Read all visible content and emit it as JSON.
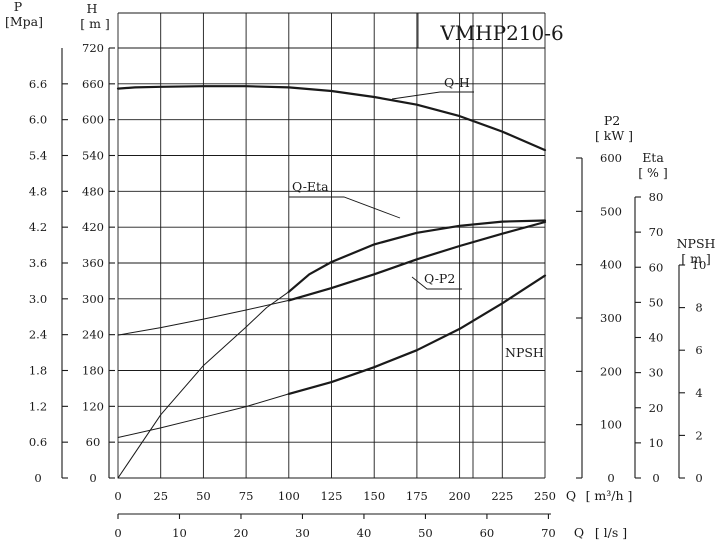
{
  "chart_data": {
    "type": "line",
    "title": "VMHP210-6",
    "grid": true,
    "axes": {
      "H": {
        "label": "H",
        "unit": "[ m ]",
        "ticks": [
          0,
          60,
          120,
          180,
          240,
          300,
          360,
          420,
          480,
          540,
          600,
          660,
          720
        ],
        "range": [
          0,
          720
        ]
      },
      "P": {
        "label": "P",
        "unit": "[Mpa]",
        "ticks": [
          "0",
          "0.6",
          "1.2",
          "1.8",
          "2.4",
          "3.0",
          "3.6",
          "4.2",
          "4.8",
          "5.4",
          "6.0",
          "6.6"
        ]
      },
      "Q_m3h": {
        "label": "Q",
        "unit": "[ m³/h ]",
        "ticks": [
          0,
          25,
          50,
          75,
          100,
          125,
          150,
          175,
          200,
          225,
          250
        ],
        "range": [
          0,
          250
        ]
      },
      "Q_ls": {
        "label": "Q",
        "unit": "[ l/s ]",
        "ticks": [
          0,
          10,
          20,
          30,
          40,
          50,
          60,
          70
        ]
      },
      "P2": {
        "label": "P2",
        "unit": "[ kW ]",
        "ticks": [
          0,
          100,
          200,
          300,
          400,
          500,
          600
        ],
        "range": [
          0,
          600
        ]
      },
      "Eta": {
        "label": "Eta",
        "unit": "[ % ]",
        "ticks": [
          0,
          10,
          20,
          30,
          40,
          50,
          60,
          70,
          80
        ],
        "range": [
          0,
          80
        ]
      },
      "NPSH": {
        "label": "NPSH",
        "unit": "[ m ]",
        "ticks": [
          0,
          2,
          4,
          6,
          8,
          10
        ],
        "range": [
          0,
          10
        ]
      }
    },
    "series": [
      {
        "name": "Q-H",
        "axis": "H",
        "width": 2.2,
        "points": [
          [
            0,
            652
          ],
          [
            10,
            654
          ],
          [
            25,
            655
          ],
          [
            50,
            656
          ],
          [
            75,
            656
          ],
          [
            100,
            654
          ],
          [
            125,
            648
          ],
          [
            150,
            638
          ],
          [
            175,
            625
          ],
          [
            200,
            606
          ],
          [
            225,
            580
          ],
          [
            250,
            549
          ]
        ]
      },
      {
        "name": "Q-Eta",
        "axis": "Eta",
        "width": 2.2,
        "points": [
          [
            100,
            53
          ],
          [
            112,
            58
          ],
          [
            125,
            61.5
          ],
          [
            150,
            66.5
          ],
          [
            175,
            69.8
          ],
          [
            200,
            71.8
          ],
          [
            225,
            73
          ],
          [
            250,
            73.3
          ]
        ]
      },
      {
        "name": "",
        "axis": "Eta",
        "width": 1.0,
        "points": [
          [
            0,
            0
          ],
          [
            25,
            18
          ],
          [
            50,
            32
          ],
          [
            75,
            43
          ],
          [
            87,
            48.5
          ],
          [
            100,
            53
          ]
        ]
      },
      {
        "name": "Q-P2",
        "axis": "P2",
        "width": 1.0,
        "points": [
          [
            0,
            268
          ],
          [
            25,
            282
          ],
          [
            50,
            298
          ],
          [
            75,
            315
          ],
          [
            100,
            333
          ]
        ]
      },
      {
        "name": "Q-P2",
        "axis": "P2",
        "width": 2.2,
        "points": [
          [
            100,
            333
          ],
          [
            125,
            356
          ],
          [
            150,
            382
          ],
          [
            175,
            410
          ],
          [
            200,
            435
          ],
          [
            225,
            458
          ],
          [
            250,
            480
          ]
        ]
      },
      {
        "name": "NPSH",
        "axis": "NPSH",
        "width": 1.0,
        "points": [
          [
            0,
            1.9
          ],
          [
            25,
            2.35
          ],
          [
            50,
            2.85
          ],
          [
            75,
            3.35
          ],
          [
            100,
            3.95
          ]
        ]
      },
      {
        "name": "NPSH",
        "axis": "NPSH",
        "width": 2.2,
        "points": [
          [
            100,
            3.95
          ],
          [
            125,
            4.5
          ],
          [
            150,
            5.2
          ],
          [
            175,
            6.0
          ],
          [
            200,
            7.0
          ],
          [
            225,
            8.2
          ],
          [
            250,
            9.5
          ]
        ]
      }
    ],
    "labels": [
      {
        "text": "Q-H"
      },
      {
        "text": "Q-Eta"
      },
      {
        "text": "Q-P2"
      },
      {
        "text": "NPSH"
      }
    ]
  }
}
